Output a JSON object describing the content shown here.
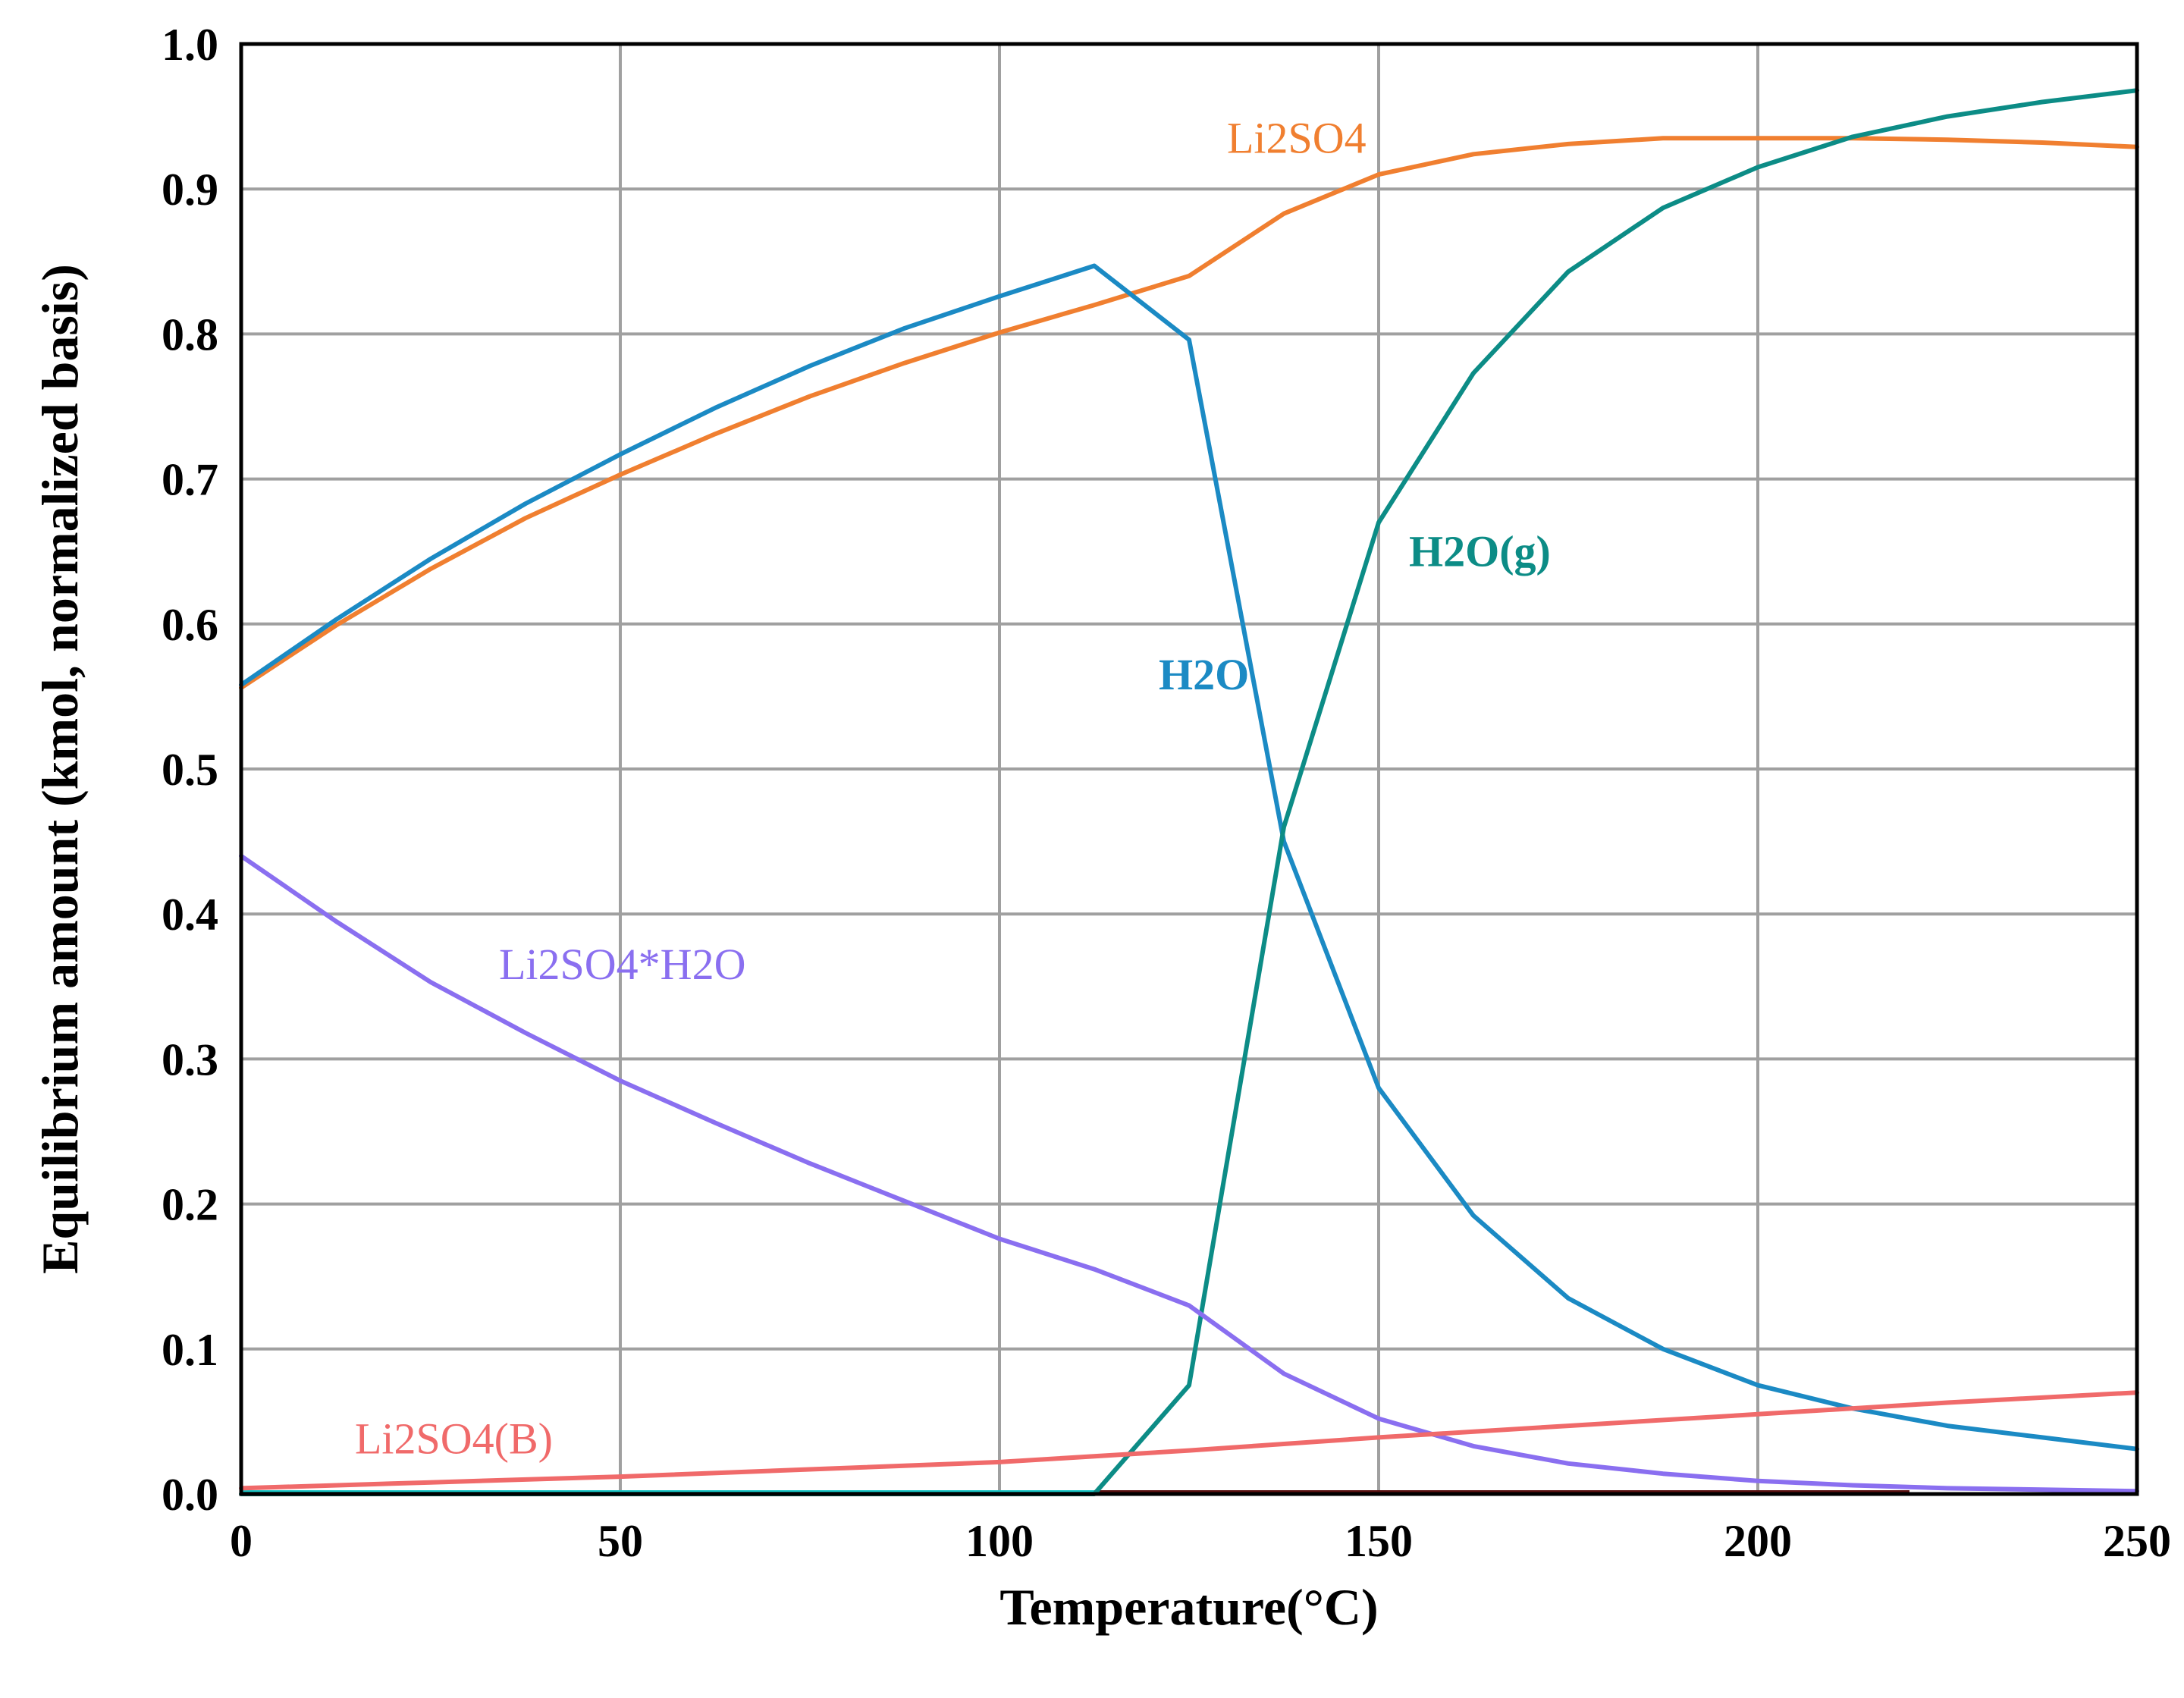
{
  "chart_data": {
    "type": "line",
    "title": "",
    "xlabel": "Temperature(°C)",
    "ylabel": "Equilibrium  amount  (kmol,  normalized  basis)",
    "xlim": [
      0,
      250
    ],
    "ylim": [
      0,
      1.0
    ],
    "grid": true,
    "legend": "inline labels",
    "x_ticks": [
      0,
      50,
      100,
      150,
      200,
      250
    ],
    "x_tick_labels": [
      "0",
      "50",
      "100",
      "150",
      "200",
      "250"
    ],
    "y_ticks": [
      0,
      0.1,
      0.2,
      0.3,
      0.4,
      0.5,
      0.6,
      0.7,
      0.8,
      0.9,
      1.0
    ],
    "y_tick_labels": [
      "0.0",
      "0.1",
      "0.2",
      "0.3",
      "0.4",
      "0.5",
      "0.6",
      "0.7",
      "0.8",
      "0.9",
      "1.0"
    ],
    "series": [
      {
        "name": "Li2SO4",
        "label": "Li2SO4",
        "color": "#f07f30",
        "label_at": [
          130,
          0.925
        ],
        "x": [
          0,
          12.5,
          25,
          37.5,
          50,
          62.5,
          75,
          87.5,
          100,
          112.5,
          125,
          137.5,
          150,
          162.5,
          175,
          187.5,
          200,
          212.5,
          225,
          237.5,
          250
        ],
        "values": [
          0.556,
          0.599,
          0.638,
          0.673,
          0.703,
          0.731,
          0.757,
          0.78,
          0.801,
          0.82,
          0.84,
          0.883,
          0.91,
          0.924,
          0.931,
          0.935,
          0.935,
          0.935,
          0.934,
          0.932,
          0.929
        ]
      },
      {
        "name": "H2O",
        "label": "H2O",
        "color": "#1b8ac4",
        "label_at": [
          121,
          0.555
        ],
        "x": [
          0,
          12.5,
          25,
          37.5,
          50,
          62.5,
          75,
          87.5,
          100,
          112.5,
          125,
          137.5,
          150,
          162.5,
          175,
          187.5,
          200,
          212.5,
          225,
          237.5,
          250
        ],
        "values": [
          0.558,
          0.603,
          0.645,
          0.683,
          0.717,
          0.749,
          0.778,
          0.804,
          0.826,
          0.847,
          0.796,
          0.45,
          0.28,
          0.192,
          0.135,
          0.1,
          0.075,
          0.059,
          0.047,
          0.039,
          0.031
        ]
      },
      {
        "name": "H2O(g)",
        "label": "H2O(g)",
        "color": "#0c8c86",
        "label_at": [
          154,
          0.64
        ],
        "x": [
          0,
          112.5,
          125,
          137.5,
          150,
          162.5,
          175,
          187.5,
          200,
          212.5,
          225,
          237.5,
          250
        ],
        "values": [
          0.0,
          0.0,
          0.075,
          0.46,
          0.67,
          0.773,
          0.843,
          0.887,
          0.915,
          0.936,
          0.95,
          0.96,
          0.968
        ]
      },
      {
        "name": "Li2SO4*H2O",
        "label": "Li2SO4*H2O",
        "color": "#8a6ff0",
        "label_at": [
          34,
          0.355
        ],
        "x": [
          0,
          12.5,
          25,
          37.5,
          50,
          62.5,
          75,
          87.5,
          100,
          112.5,
          125,
          137.5,
          150,
          162.5,
          175,
          187.5,
          200,
          212.5,
          225,
          237.5,
          250
        ],
        "values": [
          0.44,
          0.395,
          0.353,
          0.318,
          0.285,
          0.256,
          0.228,
          0.202,
          0.176,
          0.155,
          0.13,
          0.083,
          0.052,
          0.033,
          0.021,
          0.014,
          0.009,
          0.006,
          0.004,
          0.003,
          0.002
        ]
      },
      {
        "name": "Li2SO4(B)",
        "label": "Li2SO4(B)",
        "color": "#f06a6a",
        "label_at": [
          15,
          0.028
        ],
        "x": [
          0,
          25,
          50,
          75,
          100,
          125,
          150,
          175,
          200,
          225,
          250
        ],
        "values": [
          0.004,
          0.008,
          0.012,
          0.017,
          0.022,
          0.03,
          0.039,
          0.047,
          0.055,
          0.063,
          0.07
        ]
      }
    ]
  }
}
